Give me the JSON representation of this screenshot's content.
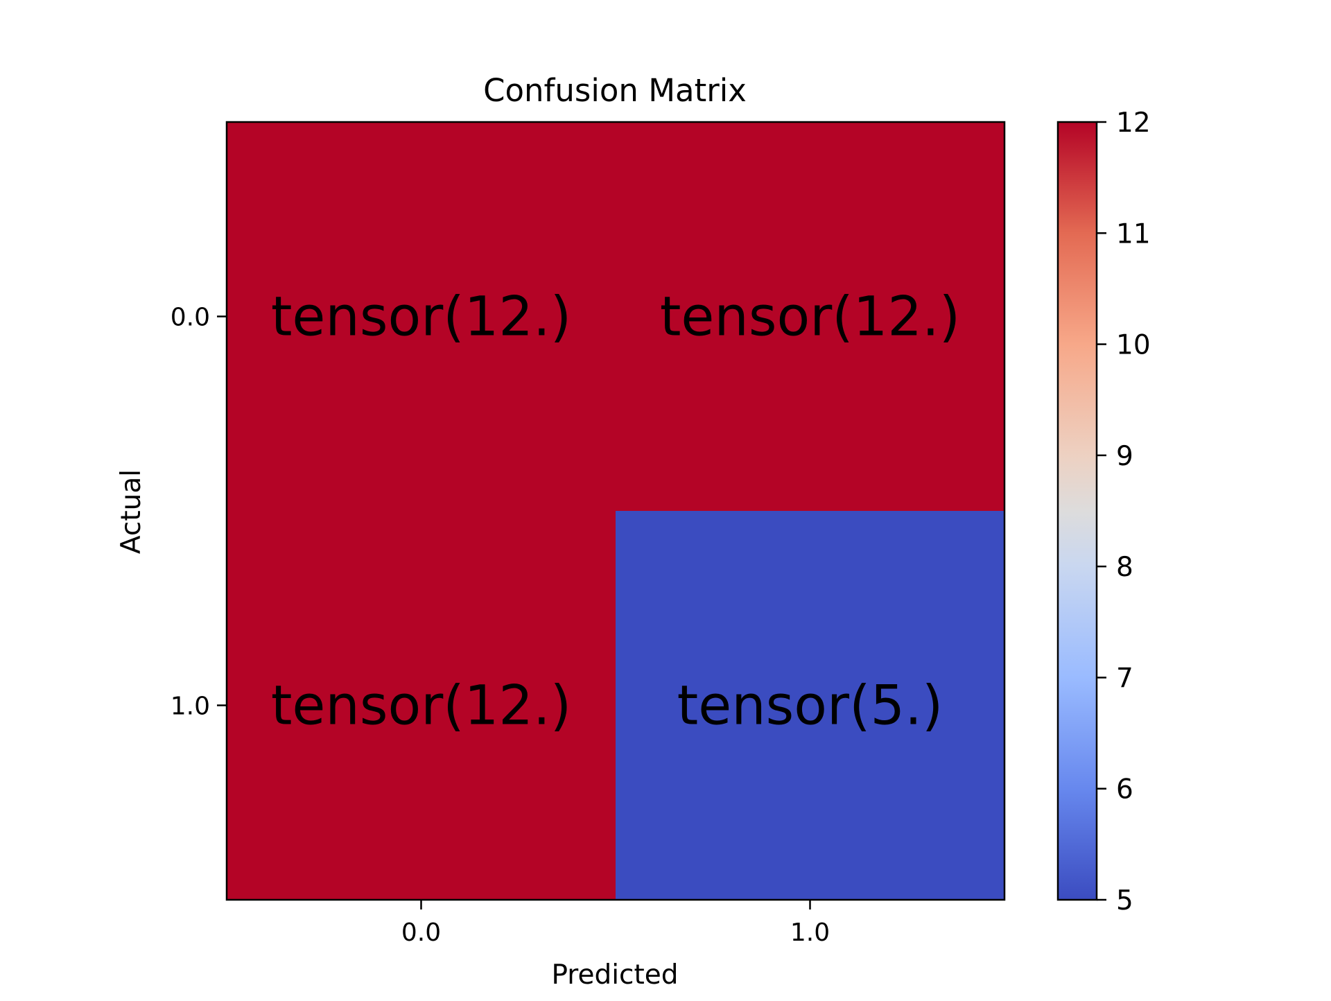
{
  "chart_data": {
    "type": "heatmap",
    "title": "Confusion Matrix",
    "xlabel": "Predicted",
    "ylabel": "Actual",
    "x_categories": [
      "0.0",
      "1.0"
    ],
    "y_categories": [
      "0.0",
      "1.0"
    ],
    "values": [
      [
        12,
        12
      ],
      [
        12,
        5
      ]
    ],
    "cell_labels": [
      [
        "tensor(12.)",
        "tensor(12.)"
      ],
      [
        "tensor(12.)",
        "tensor(5.)"
      ]
    ],
    "colormap": "coolwarm",
    "colorbar": {
      "range": [
        5,
        12
      ],
      "ticks": [
        "5",
        "6",
        "7",
        "8",
        "9",
        "10",
        "11",
        "12"
      ]
    },
    "grid": false
  }
}
